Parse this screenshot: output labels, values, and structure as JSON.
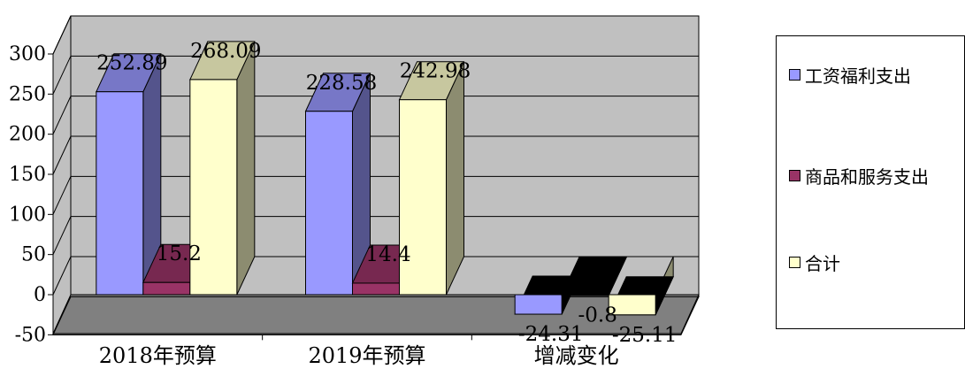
{
  "chart_data": {
    "type": "bar",
    "categories": [
      "2018年预算",
      "2019年预算",
      "增减变化"
    ],
    "series": [
      {
        "name": "工资福利支出",
        "values": [
          252.89,
          228.58,
          -24.31
        ],
        "labels": [
          "252.89",
          "228.58",
          "-24.31"
        ],
        "color": "#9999ff"
      },
      {
        "name": "商品和服务支出",
        "values": [
          15.2,
          14.4,
          -0.8
        ],
        "labels": [
          "15.2",
          "14.4",
          "-0.8"
        ],
        "color": "#993366"
      },
      {
        "name": "合计",
        "values": [
          268.09,
          242.98,
          -25.11
        ],
        "labels": [
          "268.09",
          "242.98",
          "-25.11"
        ],
        "color": "#ffffcc"
      }
    ],
    "yticks": [
      "300",
      "250",
      "200",
      "150",
      "100",
      "50",
      "0",
      "-50"
    ],
    "ylim": [
      -50,
      300
    ],
    "grid": true,
    "legend_position": "right",
    "three_d": true,
    "wall_color": "#c0c0c0",
    "floor_color": "#808080"
  }
}
